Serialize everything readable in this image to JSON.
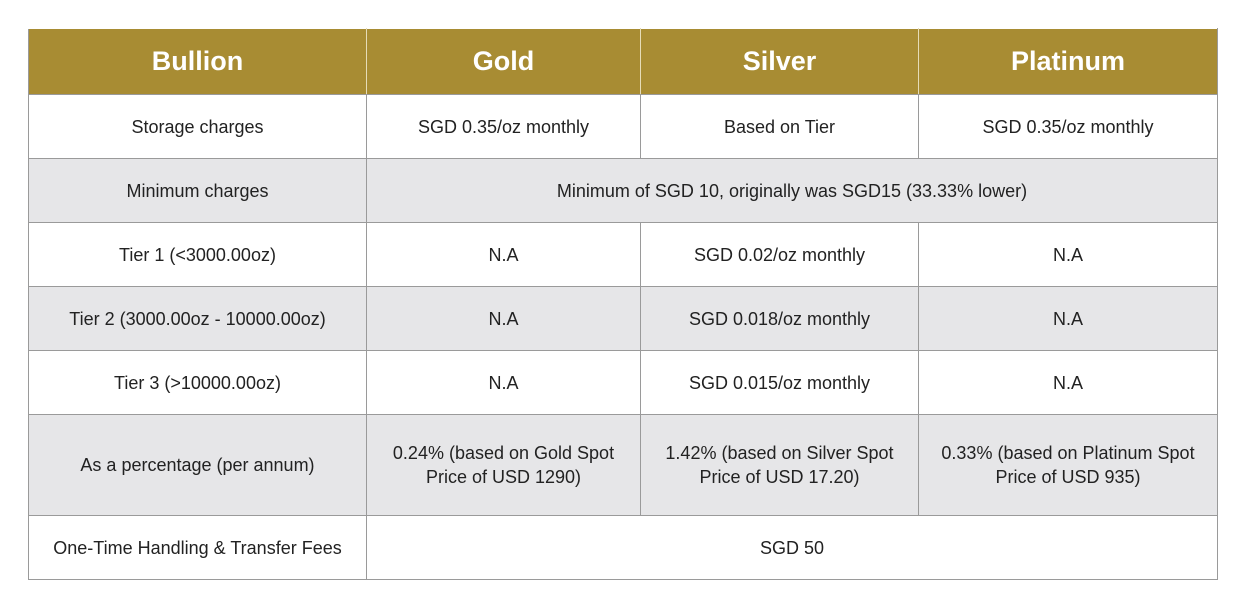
{
  "table": {
    "headers": [
      "Bullion",
      "Gold",
      "Silver",
      "Platinum"
    ],
    "rows": {
      "storage": {
        "label": "Storage charges",
        "gold": "SGD 0.35/oz monthly",
        "silver": "Based on Tier",
        "platinum": "SGD 0.35/oz monthly"
      },
      "minimum": {
        "label": "Minimum charges",
        "value": "Minimum of SGD 10, originally was SGD15 (33.33% lower)"
      },
      "tier1": {
        "label": "Tier 1 (<3000.00oz)",
        "gold": "N.A",
        "silver": "SGD 0.02/oz monthly",
        "platinum": "N.A"
      },
      "tier2": {
        "label": "Tier 2 (3000.00oz - 10000.00oz)",
        "gold": "N.A",
        "silver": "SGD 0.018/oz monthly",
        "platinum": "N.A"
      },
      "tier3": {
        "label": "Tier 3 (>10000.00oz)",
        "gold": "N.A",
        "silver": "SGD 0.015/oz monthly",
        "platinum": "N.A"
      },
      "percentage": {
        "label": "As a percentage (per annum)",
        "gold": [
          "0.24% (based on Gold Spot",
          "Price of USD 1290)"
        ],
        "silver": [
          "1.42% (based on Silver Spot",
          "Price of USD 17.20)"
        ],
        "platinum": [
          "0.33% (based on Platinum Spot",
          "Price of USD 935)"
        ]
      },
      "handling": {
        "label": "One-Time Handling & Transfer Fees",
        "value": "SGD 50"
      }
    }
  },
  "colors": {
    "header_bg": "#a88c33",
    "shaded_row_bg": "#e6e6e8",
    "border": "#9a9a9a"
  }
}
